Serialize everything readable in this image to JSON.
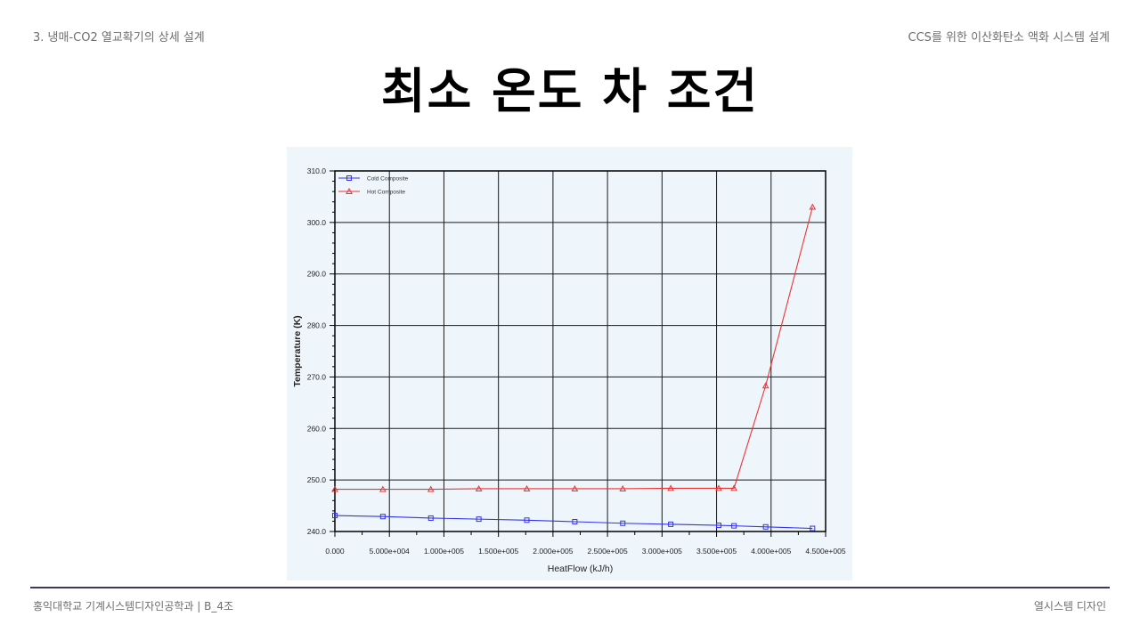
{
  "header": {
    "section": "3. 냉매-CO2 열교확기의 상세 설계",
    "project": "CCS를 위한 이산화탄소 액화 시스템 설계"
  },
  "title": "최소 온도 차 조건",
  "footer": {
    "left": "홍익대학교 기계시스템디자인공학과 | B_4조",
    "right": "열시스템 디자인"
  },
  "colors": {
    "cold": "#3333ee",
    "hot": "#ee3333",
    "plot_bg": "#eef6fc",
    "grid": "#000000"
  },
  "chart_data": {
    "type": "line",
    "xlabel": "HeatFlow (kJ/h)",
    "ylabel": "Temperature (K)",
    "xlim": [
      0,
      450000
    ],
    "ylim": [
      240,
      310
    ],
    "x_ticks": [
      0,
      50000,
      100000,
      150000,
      200000,
      250000,
      300000,
      350000,
      400000,
      450000
    ],
    "x_tick_labels": [
      "0.000",
      "5.000e+004",
      "1.000e+005",
      "1.500e+005",
      "2.000e+005",
      "2.500e+005",
      "3.000e+005",
      "3.500e+005",
      "4.000e+005",
      "4.500e+005"
    ],
    "y_ticks": [
      240,
      250,
      260,
      270,
      280,
      290,
      300,
      310
    ],
    "y_tick_labels": [
      "240.0",
      "250.0",
      "260.0",
      "270.0",
      "280.0",
      "290.0",
      "300.0",
      "310.0"
    ],
    "grid": true,
    "legend": "top-left",
    "series": [
      {
        "name": "Cold Composite",
        "marker": "square",
        "x": [
          0,
          44000,
          88000,
          132000,
          176000,
          220000,
          264000,
          308000,
          352000,
          366000,
          395000,
          438000
        ],
        "y": [
          243.1,
          242.9,
          242.6,
          242.4,
          242.2,
          241.9,
          241.6,
          241.4,
          241.2,
          241.1,
          240.9,
          240.6
        ]
      },
      {
        "name": "Hot Composite",
        "marker": "triangle",
        "x": [
          0,
          44000,
          88000,
          132000,
          176000,
          220000,
          264000,
          308000,
          352000,
          366000,
          395000,
          438000
        ],
        "y": [
          248.2,
          248.2,
          248.2,
          248.3,
          248.3,
          248.3,
          248.3,
          248.4,
          248.4,
          248.4,
          268.3,
          303.0
        ]
      }
    ]
  }
}
